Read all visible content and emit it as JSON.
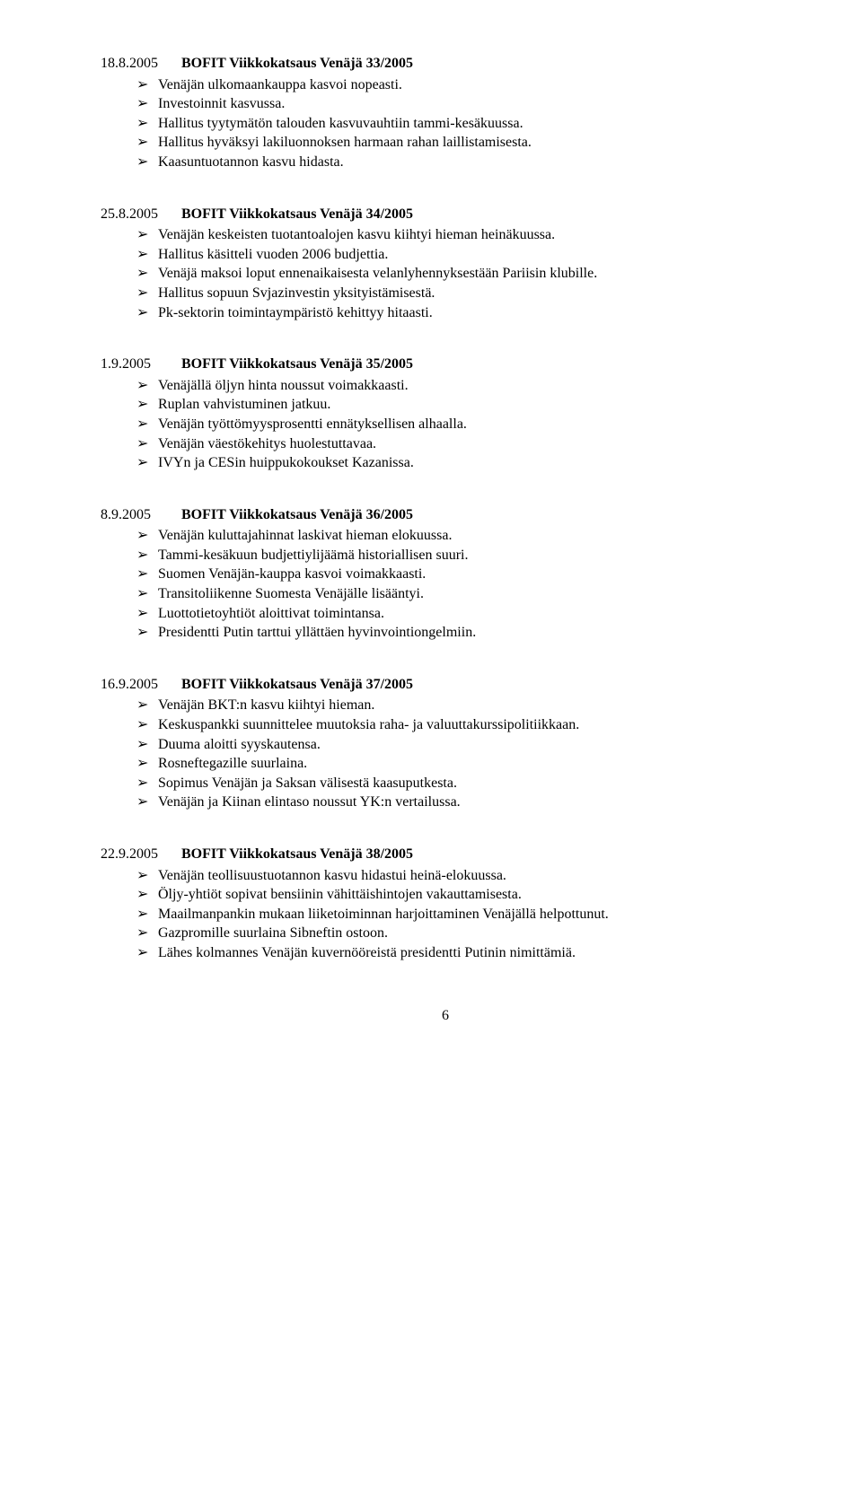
{
  "page_number": "6",
  "entries": [
    {
      "date": "18.8.2005",
      "title": "BOFIT Viikkokatsaus Venäjä  33/2005",
      "items": [
        "Venäjän ulkomaankauppa kasvoi nopeasti.",
        "Investoinnit kasvussa.",
        "Hallitus tyytymätön talouden kasvuvauhtiin tammi-kesäkuussa.",
        "Hallitus hyväksyi lakiluonnoksen harmaan rahan laillistamisesta.",
        "Kaasuntuotannon kasvu hidasta."
      ]
    },
    {
      "date": "25.8.2005",
      "title": "BOFIT Viikkokatsaus Venäjä  34/2005",
      "items": [
        "Venäjän keskeisten tuotantoalojen kasvu kiihtyi hieman heinäkuussa.",
        "Hallitus käsitteli vuoden 2006 budjettia.",
        "Venäjä maksoi loput ennenaikaisesta velanlyhennyksestään Pariisin klubille.",
        "Hallitus sopuun Svjazinvestin yksityistämisestä.",
        "Pk-sektorin toimintaympäristö kehittyy hitaasti."
      ]
    },
    {
      "date": "1.9.2005",
      "title": "BOFIT Viikkokatsaus Venäjä  35/2005",
      "items": [
        "Venäjällä öljyn hinta noussut voimakkaasti.",
        "Ruplan vahvistuminen jatkuu.",
        "Venäjän työttömyysprosentti ennätyksellisen alhaalla.",
        "Venäjän väestökehitys huolestuttavaa.",
        "IVYn ja CESin huippukokoukset Kazanissa."
      ]
    },
    {
      "date": "8.9.2005",
      "title": "BOFIT Viikkokatsaus Venäjä  36/2005",
      "items": [
        "Venäjän kuluttajahinnat laskivat hieman elokuussa.",
        "Tammi-kesäkuun budjettiylijäämä historiallisen suuri.",
        "Suomen Venäjän-kauppa kasvoi voimakkaasti.",
        "Transitoliikenne Suomesta Venäjälle lisääntyi.",
        "Luottotietoyhtiöt aloittivat toimintansa.",
        "Presidentti Putin tarttui yllättäen hyvinvointiongelmiin."
      ]
    },
    {
      "date": "16.9.2005",
      "title": "BOFIT Viikkokatsaus Venäjä  37/2005",
      "items": [
        "Venäjän BKT:n kasvu kiihtyi hieman.",
        "Keskuspankki suunnittelee muutoksia raha- ja valuuttakurssipolitiikkaan.",
        "Duuma aloitti syyskautensa.",
        "Rosneftegazille suurlaina.",
        "Sopimus Venäjän ja Saksan välisestä kaasuputkesta.",
        "Venäjän ja Kiinan elintaso noussut YK:n vertailussa."
      ]
    },
    {
      "date": "22.9.2005",
      "title": "BOFIT Viikkokatsaus Venäjä  38/2005",
      "items": [
        "Venäjän teollisuustuotannon kasvu hidastui heinä-elokuussa.",
        "Öljy-yhtiöt sopivat bensiinin vähittäishintojen vakauttamisesta.",
        "Maailmanpankin mukaan liiketoiminnan harjoittaminen Venäjällä helpottunut.",
        "Gazpromille suurlaina Sibneftin ostoon.",
        "Lähes kolmannes Venäjän kuvernööreistä presidentti Putinin nimittämiä."
      ]
    }
  ]
}
